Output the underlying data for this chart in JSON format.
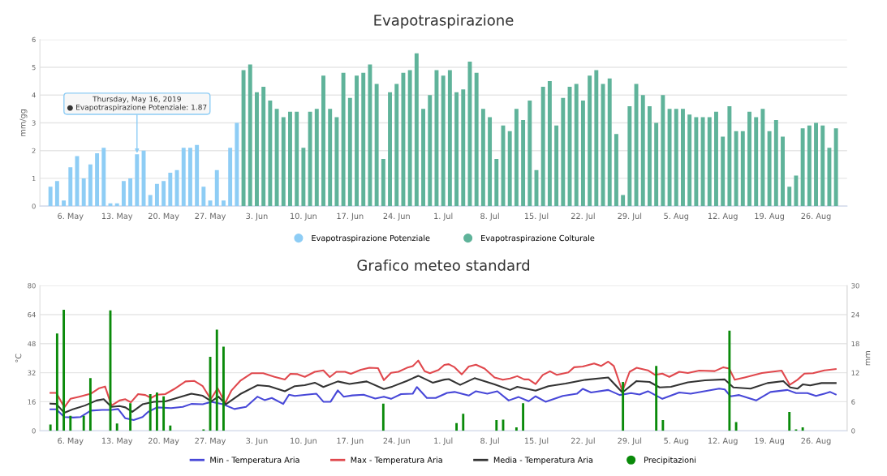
{
  "chart_data": [
    {
      "type": "bar",
      "title": "Evapotraspirazione",
      "ylabel": "mm/gg",
      "xlim": [
        "2019-05-01T10:00",
        "2019-08-30T16:00"
      ],
      "xticks": [
        {
          "value": "2019-05-06",
          "label": "6. May"
        },
        {
          "value": "2019-05-13",
          "label": "13. May"
        },
        {
          "value": "2019-05-20",
          "label": "20. May"
        },
        {
          "value": "2019-05-27",
          "label": "27. May"
        },
        {
          "value": "2019-06-03",
          "label": "3. Jun"
        },
        {
          "value": "2019-06-10",
          "label": "10. Jun"
        },
        {
          "value": "2019-06-17",
          "label": "17. Jun"
        },
        {
          "value": "2019-06-24",
          "label": "24. Jun"
        },
        {
          "value": "2019-07-01",
          "label": "1. Jul"
        },
        {
          "value": "2019-07-08",
          "label": "8. Jul"
        },
        {
          "value": "2019-07-15",
          "label": "15. Jul"
        },
        {
          "value": "2019-07-22",
          "label": "22. Jul"
        },
        {
          "value": "2019-07-29",
          "label": "29. Jul"
        },
        {
          "value": "2019-08-05",
          "label": "5. Aug"
        },
        {
          "value": "2019-08-12",
          "label": "12. Aug"
        },
        {
          "value": "2019-08-19",
          "label": "19. Aug"
        },
        {
          "value": "2019-08-26",
          "label": "26. Aug"
        }
      ],
      "ylim": [
        0,
        6
      ],
      "yticks": [
        0,
        1,
        2,
        3,
        4,
        5,
        6
      ],
      "grid": "y",
      "legend": "bottom",
      "annotations": [
        {
          "text": "Thursday, May 16, 2019\n● Evapotraspirazione Potenziale: 1.87",
          "x": "2019-05-16",
          "y": 1.87
        }
      ],
      "series": [
        {
          "name": "Evapotraspirazione Potenziale",
          "color": "#8ecdf5",
          "x": [
            "2019-05-03",
            "2019-05-04",
            "2019-05-05",
            "2019-05-06",
            "2019-05-07",
            "2019-05-08",
            "2019-05-09",
            "2019-05-10",
            "2019-05-11",
            "2019-05-12",
            "2019-05-13",
            "2019-05-14",
            "2019-05-15",
            "2019-05-16",
            "2019-05-17",
            "2019-05-18",
            "2019-05-19",
            "2019-05-20",
            "2019-05-21",
            "2019-05-22",
            "2019-05-23",
            "2019-05-24",
            "2019-05-25",
            "2019-05-26",
            "2019-05-27",
            "2019-05-28",
            "2019-05-29",
            "2019-05-30",
            "2019-05-31"
          ],
          "values": [
            0.7,
            0.9,
            0.2,
            1.4,
            1.8,
            1.0,
            1.5,
            1.9,
            2.1,
            0.1,
            0.1,
            0.9,
            1.0,
            1.87,
            2.0,
            0.4,
            0.8,
            0.9,
            1.2,
            1.3,
            2.1,
            2.1,
            2.2,
            0.7,
            0.2,
            1.3,
            0.2,
            2.1,
            3.0
          ]
        },
        {
          "name": "Evapotraspirazione Colturale",
          "color": "#5fb39a",
          "x": [
            "2019-06-01",
            "2019-06-02",
            "2019-06-03",
            "2019-06-04",
            "2019-06-05",
            "2019-06-06",
            "2019-06-07",
            "2019-06-08",
            "2019-06-09",
            "2019-06-10",
            "2019-06-11",
            "2019-06-12",
            "2019-06-13",
            "2019-06-14",
            "2019-06-15",
            "2019-06-16",
            "2019-06-17",
            "2019-06-18",
            "2019-06-19",
            "2019-06-20",
            "2019-06-21",
            "2019-06-22",
            "2019-06-23",
            "2019-06-24",
            "2019-06-25",
            "2019-06-26",
            "2019-06-27",
            "2019-06-28",
            "2019-06-29",
            "2019-06-30",
            "2019-07-01",
            "2019-07-02",
            "2019-07-03",
            "2019-07-04",
            "2019-07-05",
            "2019-07-06",
            "2019-07-07",
            "2019-07-08",
            "2019-07-09",
            "2019-07-10",
            "2019-07-11",
            "2019-07-12",
            "2019-07-13",
            "2019-07-14",
            "2019-07-15",
            "2019-07-16",
            "2019-07-17",
            "2019-07-18",
            "2019-07-19",
            "2019-07-20",
            "2019-07-21",
            "2019-07-22",
            "2019-07-23",
            "2019-07-24",
            "2019-07-25",
            "2019-07-26",
            "2019-07-27",
            "2019-07-28",
            "2019-07-29",
            "2019-07-30",
            "2019-07-31",
            "2019-08-01",
            "2019-08-02",
            "2019-08-03",
            "2019-08-04",
            "2019-08-05",
            "2019-08-06",
            "2019-08-07",
            "2019-08-08",
            "2019-08-09",
            "2019-08-10",
            "2019-08-11",
            "2019-08-12",
            "2019-08-13",
            "2019-08-14",
            "2019-08-15",
            "2019-08-16",
            "2019-08-17",
            "2019-08-18",
            "2019-08-19",
            "2019-08-20",
            "2019-08-21",
            "2019-08-22",
            "2019-08-23",
            "2019-08-24",
            "2019-08-25",
            "2019-08-26",
            "2019-08-27",
            "2019-08-28",
            "2019-08-29"
          ],
          "values": [
            4.9,
            5.1,
            4.1,
            4.3,
            3.8,
            3.5,
            3.2,
            3.4,
            3.4,
            2.1,
            3.4,
            3.5,
            4.7,
            3.5,
            3.2,
            4.8,
            3.9,
            4.7,
            4.8,
            5.1,
            4.4,
            1.7,
            4.1,
            4.4,
            4.8,
            4.9,
            5.5,
            3.5,
            4.0,
            4.9,
            4.7,
            4.9,
            4.1,
            4.2,
            5.2,
            4.8,
            3.5,
            3.2,
            1.7,
            2.9,
            2.7,
            3.5,
            3.1,
            3.8,
            1.3,
            4.3,
            4.5,
            2.9,
            3.9,
            4.3,
            4.4,
            3.8,
            4.7,
            4.9,
            4.4,
            4.6,
            2.6,
            0.4,
            3.6,
            4.4,
            4.0,
            3.6,
            3.0,
            4.0,
            3.5,
            3.5,
            3.5,
            3.3,
            3.2,
            3.2,
            3.2,
            3.4,
            2.5,
            3.6,
            2.7,
            2.7,
            3.4,
            3.2,
            3.5,
            2.7,
            3.1,
            2.5,
            0.7,
            1.1,
            2.8,
            2.9,
            3.0,
            2.9,
            2.1,
            2.8
          ]
        }
      ]
    },
    {
      "type": "line",
      "title": "Grafico meteo standard",
      "ylabel": "°C",
      "y2label": "mm",
      "xlim": [
        "2019-05-01T10:00",
        "2019-08-30T16:00"
      ],
      "xticks": [
        {
          "value": "2019-05-06",
          "label": "6. May"
        },
        {
          "value": "2019-05-13",
          "label": "13. May"
        },
        {
          "value": "2019-05-20",
          "label": "20. May"
        },
        {
          "value": "2019-05-27",
          "label": "27. May"
        },
        {
          "value": "2019-06-03",
          "label": "3. Jun"
        },
        {
          "value": "2019-06-10",
          "label": "10. Jun"
        },
        {
          "value": "2019-06-17",
          "label": "17. Jun"
        },
        {
          "value": "2019-06-24",
          "label": "24. Jun"
        },
        {
          "value": "2019-07-01",
          "label": "1. Jul"
        },
        {
          "value": "2019-07-08",
          "label": "8. Jul"
        },
        {
          "value": "2019-07-15",
          "label": "15. Jul"
        },
        {
          "value": "2019-07-22",
          "label": "22. Jul"
        },
        {
          "value": "2019-07-29",
          "label": "29. Jul"
        },
        {
          "value": "2019-08-05",
          "label": "5. Aug"
        },
        {
          "value": "2019-08-12",
          "label": "12. Aug"
        },
        {
          "value": "2019-08-19",
          "label": "19. Aug"
        },
        {
          "value": "2019-08-26",
          "label": "26. Aug"
        }
      ],
      "ylim": [
        0,
        80
      ],
      "yticks": [
        0,
        16,
        32,
        48,
        64,
        80
      ],
      "y2lim": [
        0,
        30
      ],
      "y2ticks": [
        0,
        6,
        12,
        18,
        24,
        30
      ],
      "grid": "y",
      "legend": "bottom",
      "series": [
        {
          "name": "Min - Temperatura Aria",
          "color": "#4848d8",
          "x": [
            "2019-05-03T00:00",
            "2019-05-03T21:00",
            "2019-05-05T02:00",
            "2019-05-06T11:00",
            "2019-05-07T13:00",
            "2019-05-09T01:00",
            "2019-05-10T18:00",
            "2019-05-12T04:00",
            "2019-05-13T04:00",
            "2019-05-14T06:00",
            "2019-05-15T12:00",
            "2019-05-16T20:00",
            "2019-05-17T16:00",
            "2019-05-19T00:00",
            "2019-05-21T03:00",
            "2019-05-22T21:00",
            "2019-05-24T04:00",
            "2019-05-25T21:00",
            "2019-05-27T04:00",
            "2019-05-28T22:00",
            "2019-05-30T15:00",
            "2019-06-01T09:00",
            "2019-06-03T02:00",
            "2019-06-04T04:00",
            "2019-06-05T06:00",
            "2019-06-06T23:00",
            "2019-06-07T20:00",
            "2019-06-08T17:00",
            "2019-06-10T10:00",
            "2019-06-11T23:00",
            "2019-06-13T00:00",
            "2019-06-14T02:00",
            "2019-06-15T04:00",
            "2019-06-16T01:00",
            "2019-06-17T08:00",
            "2019-06-19T01:00",
            "2019-06-20T19:00",
            "2019-06-22T02:00",
            "2019-06-23T04:00",
            "2019-06-24T16:00",
            "2019-06-26T10:00",
            "2019-06-27T01:00",
            "2019-06-28T13:00",
            "2019-06-29T21:00",
            "2019-07-01T14:00",
            "2019-07-02T17:00",
            "2019-07-04T20:00",
            "2019-07-05T22:00",
            "2019-07-07T15:00",
            "2019-07-09T03:00",
            "2019-07-10T20:00",
            "2019-07-12T08:00",
            "2019-07-13T20:00",
            "2019-07-14T21:00",
            "2019-07-16T09:00",
            "2019-07-18T23:00",
            "2019-07-21T02:00",
            "2019-07-21T23:00",
            "2019-07-23T05:00",
            "2019-07-25T19:00",
            "2019-07-27T12:00",
            "2019-07-29T05:00",
            "2019-07-30T12:00",
            "2019-07-31T18:00",
            "2019-08-02T22:00",
            "2019-08-05T11:00",
            "2019-08-07T04:00",
            "2019-08-11T11:00",
            "2019-08-12T07:00",
            "2019-08-13T04:00",
            "2019-08-14T11:00",
            "2019-08-17T00:00",
            "2019-08-19T04:00",
            "2019-08-21T17:00",
            "2019-08-23T00:00",
            "2019-08-24T17:00",
            "2019-08-26T00:00",
            "2019-08-27T06:00",
            "2019-08-28T03:00",
            "2019-08-28T23:00"
          ],
          "values": [
            11.8,
            11.8,
            7.6,
            7.3,
            7.6,
            11.1,
            11.5,
            11.5,
            12,
            6.9,
            5.9,
            7.6,
            10.4,
            12.9,
            12.5,
            13.2,
            14.8,
            14.6,
            16,
            14.6,
            12,
            13.2,
            18.8,
            16.9,
            18.1,
            14.8,
            19.9,
            19.2,
            19.9,
            20.4,
            16,
            16,
            22.3,
            18.8,
            19.5,
            19.9,
            17.8,
            18.8,
            17.6,
            20.2,
            20.4,
            24.1,
            18.1,
            18.1,
            20.9,
            21.4,
            19.4,
            21.8,
            20.4,
            21.8,
            16.7,
            18.6,
            16.3,
            19,
            16,
            19.2,
            20.4,
            23.1,
            21.1,
            22.5,
            19.7,
            20.8,
            20,
            21.8,
            17.6,
            21.1,
            20.4,
            23.2,
            22.8,
            19,
            19.7,
            16.7,
            21.4,
            22.5,
            20.8,
            20.8,
            19.2,
            20.4,
            21.4,
            20
          ]
        },
        {
          "name": "Max - Temperatura Aria",
          "color": "#e0484d",
          "x": [
            "2019-05-03T00:00",
            "2019-05-03T21:00",
            "2019-05-05T02:00",
            "2019-05-06T00:00",
            "2019-05-07T08:00",
            "2019-05-09T01:00",
            "2019-05-10T08:00",
            "2019-05-11T05:00",
            "2019-05-12T04:00",
            "2019-05-13T09:00",
            "2019-05-14T06:00",
            "2019-05-15T02:00",
            "2019-05-16T04:00",
            "2019-05-17T06:00",
            "2019-05-18T03:00",
            "2019-05-19T00:00",
            "2019-05-20T06:00",
            "2019-05-21T14:00",
            "2019-05-23T07:00",
            "2019-05-24T14:00",
            "2019-05-25T21:00",
            "2019-05-27T02:00",
            "2019-05-28T03:00",
            "2019-05-29T06:00",
            "2019-05-30T05:00",
            "2019-05-31T12:00",
            "2019-06-02T05:00",
            "2019-06-03T23:00",
            "2019-06-05T16:00",
            "2019-06-07T05:00",
            "2019-06-08T01:00",
            "2019-06-09T03:00",
            "2019-06-10T05:00",
            "2019-06-11T17:00",
            "2019-06-13T00:00",
            "2019-06-13T23:00",
            "2019-06-14T23:00",
            "2019-06-16T06:00",
            "2019-06-17T03:00",
            "2019-06-18T15:00",
            "2019-06-19T22:00",
            "2019-06-21T05:00",
            "2019-06-22T02:00",
            "2019-06-23T04:00",
            "2019-06-24T06:00",
            "2019-06-25T13:00",
            "2019-06-26T10:00",
            "2019-06-27T06:00",
            "2019-06-28T05:00",
            "2019-06-29T00:00",
            "2019-06-30T07:00",
            "2019-07-01T04:00",
            "2019-07-01T20:00",
            "2019-07-02T17:00",
            "2019-07-03T19:00",
            "2019-07-04T20:00",
            "2019-07-05T22:00",
            "2019-07-07T05:00",
            "2019-07-08T17:00",
            "2019-07-09T23:00",
            "2019-07-11T01:00",
            "2019-07-12T03:00",
            "2019-07-13T04:00",
            "2019-07-13T20:00",
            "2019-07-14T21:00",
            "2019-07-15T23:00",
            "2019-07-17T01:00",
            "2019-07-18T02:00",
            "2019-07-19T19:00",
            "2019-07-20T16:00",
            "2019-07-21T23:00",
            "2019-07-23T16:00",
            "2019-07-24T17:00",
            "2019-07-25T19:00",
            "2019-07-26T15:00",
            "2019-07-27T22:00",
            "2019-07-29T00:00",
            "2019-07-30T01:00",
            "2019-07-31T18:00",
            "2019-08-01T20:00",
            "2019-08-02T22:00",
            "2019-08-03T23:00",
            "2019-08-05T11:00",
            "2019-08-06T18:00",
            "2019-08-08T11:00",
            "2019-08-10T19:00",
            "2019-08-12T02:00",
            "2019-08-12T23:00",
            "2019-08-13T19:00",
            "2019-08-15T07:00",
            "2019-08-17T21:00",
            "2019-08-20T20:00",
            "2019-08-22T01:00",
            "2019-08-23T05:00",
            "2019-08-24T06:00",
            "2019-08-25T13:00",
            "2019-08-27T06:00",
            "2019-08-28T23:00"
          ],
          "values": [
            20.9,
            20.9,
            12.9,
            17.6,
            18.8,
            20.4,
            23.5,
            24.4,
            13.9,
            16.7,
            17.4,
            15.7,
            20.2,
            19.7,
            18.1,
            19.9,
            20.2,
            23,
            27.2,
            27.5,
            24.6,
            17.4,
            23.4,
            15.3,
            22.3,
            27.5,
            31.7,
            31.7,
            29.7,
            28.3,
            31.4,
            31.2,
            29.7,
            32.5,
            33.3,
            29.6,
            32.5,
            32.5,
            31.4,
            33.6,
            34.7,
            34.5,
            27.9,
            31.9,
            32.5,
            34.7,
            35.6,
            38.7,
            32.8,
            31.7,
            33.5,
            36.3,
            36.7,
            35,
            31.1,
            35.4,
            36.4,
            34.3,
            29.4,
            28.1,
            28.8,
            30.1,
            28.3,
            28.3,
            25.7,
            30.8,
            32.8,
            30.8,
            32.2,
            35,
            35.4,
            37.1,
            35.7,
            38.1,
            35.7,
            21.8,
            32.5,
            34.7,
            33.3,
            30.8,
            31.5,
            29.7,
            32.5,
            31.8,
            33.2,
            32.9,
            35,
            34.3,
            28.1,
            29.4,
            31.8,
            33.2,
            25.3,
            28.1,
            31.5,
            31.7,
            33.3,
            34
          ]
        },
        {
          "name": "Media - Temperatura Aria",
          "color": "#333333",
          "x": [
            "2019-05-03T00:00",
            "2019-05-03T21:00",
            "2019-05-05T02:00",
            "2019-05-06T11:00",
            "2019-05-08T04:00",
            "2019-05-09T22:00",
            "2019-05-11T00:00",
            "2019-05-12T04:00",
            "2019-05-13T09:00",
            "2019-05-14T06:00",
            "2019-05-15T07:00",
            "2019-05-16T20:00",
            "2019-05-18T13:00",
            "2019-05-20T06:00",
            "2019-05-22T00:00",
            "2019-05-24T04:00",
            "2019-05-25T21:00",
            "2019-05-27T04:00",
            "2019-05-28T06:00",
            "2019-05-29T08:00",
            "2019-05-31T12:00",
            "2019-06-03T02:00",
            "2019-06-04T20:00",
            "2019-06-07T05:00",
            "2019-06-08T17:00",
            "2019-06-10T05:00",
            "2019-06-11T17:00",
            "2019-06-13T00:00",
            "2019-06-15T04:00",
            "2019-06-16T22:00",
            "2019-06-19T12:00",
            "2019-06-22T02:00",
            "2019-06-23T09:00",
            "2019-06-25T13:00",
            "2019-06-27T06:00",
            "2019-06-29T10:00",
            "2019-07-01T04:00",
            "2019-07-01T20:00",
            "2019-07-03T13:00",
            "2019-07-05T17:00",
            "2019-07-08T17:00",
            "2019-07-11T01:00",
            "2019-07-12T03:00",
            "2019-07-14T21:00",
            "2019-07-16T19:00",
            "2019-07-19T09:00",
            "2019-07-22T09:00",
            "2019-07-25T19:00",
            "2019-07-27T22:00",
            "2019-07-30T01:00",
            "2019-08-01T00:00",
            "2019-08-02T12:00",
            "2019-08-04T05:00",
            "2019-08-06T18:00",
            "2019-08-09T08:00",
            "2019-08-12T07:00",
            "2019-08-13T14:00",
            "2019-08-16T04:00",
            "2019-08-18T17:00",
            "2019-08-21T02:00",
            "2019-08-22T03:00",
            "2019-08-23T05:00",
            "2019-08-24T01:00",
            "2019-08-25T03:00",
            "2019-08-26T20:00",
            "2019-08-28T23:00"
          ],
          "values": [
            15,
            14.8,
            9.9,
            12,
            13.9,
            16.7,
            17.4,
            13.2,
            13.6,
            12.9,
            10.4,
            14.6,
            16,
            16.2,
            18.1,
            20.4,
            19.3,
            16.2,
            18.8,
            14.6,
            20.2,
            25.1,
            24.6,
            21.8,
            24.6,
            25.1,
            26.5,
            24.1,
            27.2,
            25.8,
            27.2,
            23,
            24.4,
            27.5,
            30.3,
            26.5,
            28.2,
            28.5,
            25.3,
            29,
            25.6,
            22.5,
            24.2,
            22.1,
            24.6,
            26,
            28.1,
            29.4,
            21.1,
            27.4,
            26.9,
            23.9,
            24.2,
            26.7,
            27.8,
            28.3,
            23.9,
            23.2,
            26.3,
            27.4,
            23.9,
            23.2,
            25.6,
            25,
            26.3,
            26.3
          ]
        },
        {
          "name": "Precipitazioni",
          "type": "bar",
          "axis": "y2",
          "color": "#0a8a0a",
          "x": [
            "2019-05-03",
            "2019-05-04",
            "2019-05-05",
            "2019-05-06",
            "2019-05-08",
            "2019-05-09",
            "2019-05-12",
            "2019-05-13",
            "2019-05-15",
            "2019-05-18",
            "2019-05-19",
            "2019-05-20",
            "2019-05-21",
            "2019-05-26",
            "2019-05-27",
            "2019-05-28",
            "2019-05-29",
            "2019-06-22",
            "2019-07-03",
            "2019-07-04",
            "2019-07-09",
            "2019-07-10",
            "2019-07-12",
            "2019-07-13",
            "2019-07-28",
            "2019-08-02",
            "2019-08-03",
            "2019-08-13",
            "2019-08-14",
            "2019-08-22",
            "2019-08-23",
            "2019-08-24"
          ],
          "values": [
            1.3,
            20.1,
            25,
            3.1,
            3.1,
            10.9,
            24.9,
            1.5,
            5.7,
            7.6,
            7.9,
            7.1,
            1.1,
            0.3,
            15.3,
            20.9,
            17.4,
            5.6,
            1.6,
            3.5,
            2.2,
            2.3,
            0.7,
            5.7,
            10.1,
            13.4,
            2.2,
            20.7,
            1.8,
            3.9,
            0.3,
            0.7
          ]
        }
      ]
    }
  ]
}
